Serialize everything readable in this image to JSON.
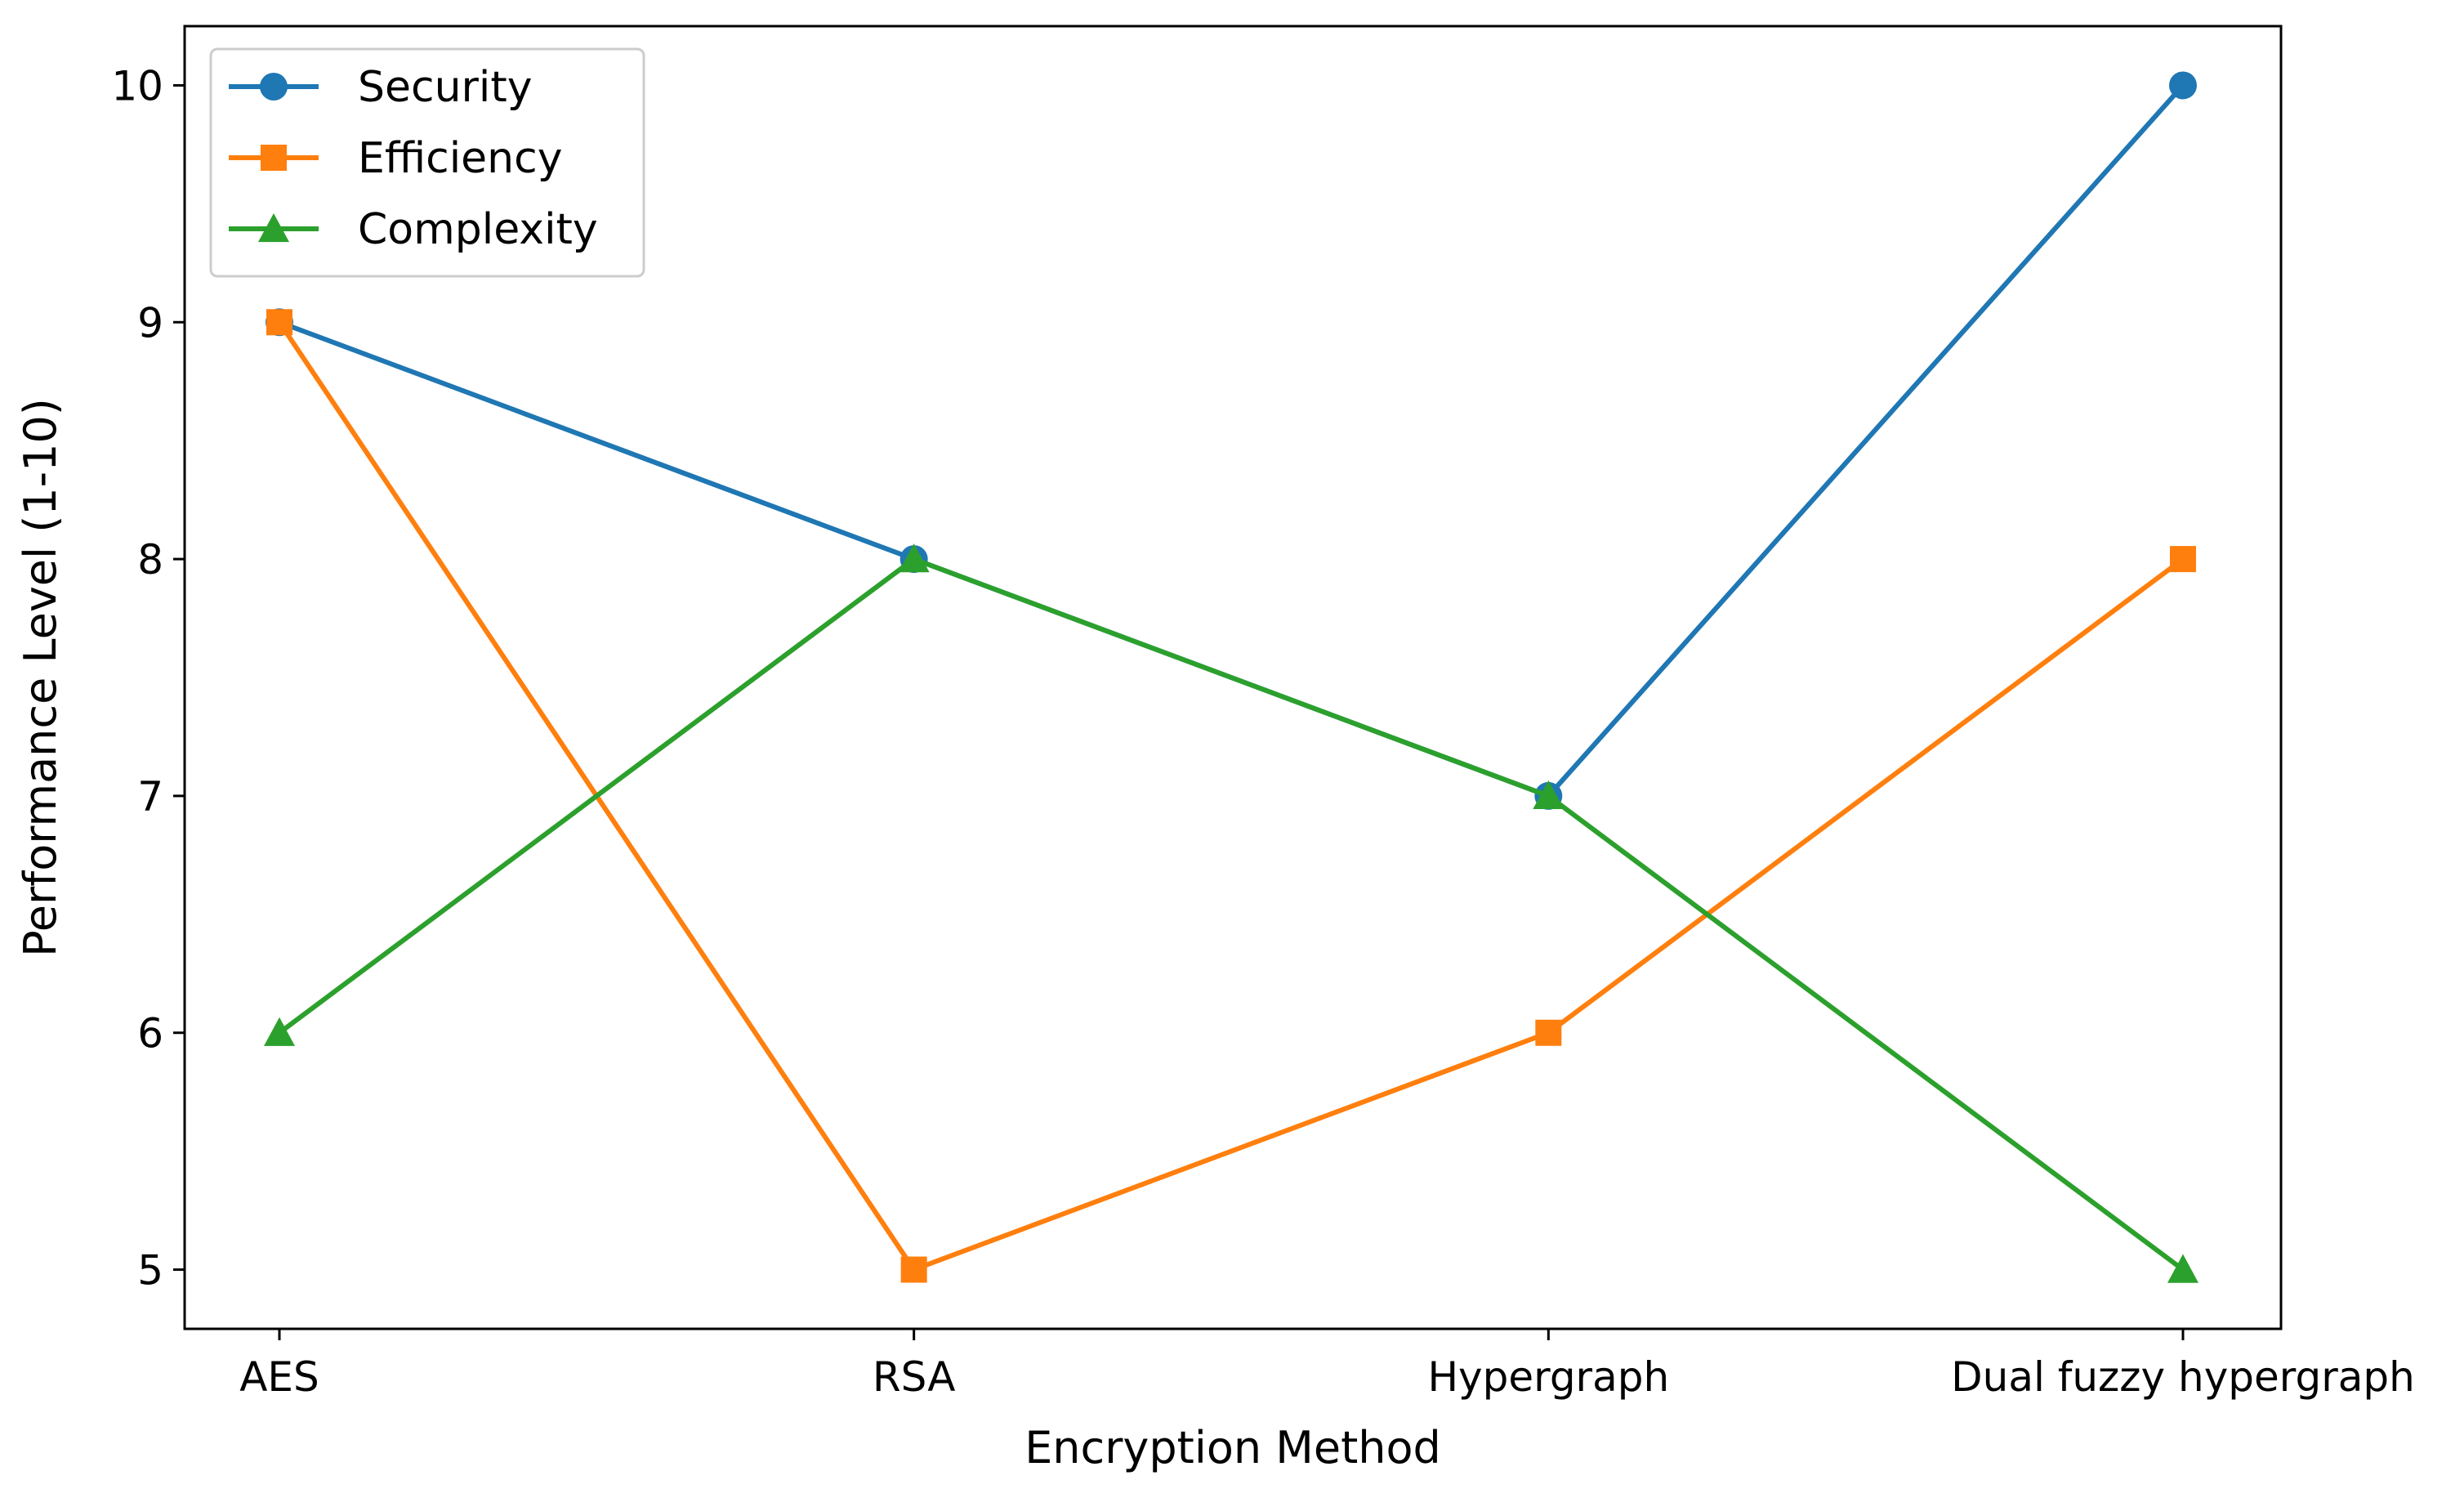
{
  "chart_data": {
    "type": "line",
    "title": "",
    "xlabel": "Encryption Method",
    "ylabel": "Performance Level (1-10)",
    "categories": [
      "AES",
      "RSA",
      "Hypergraph",
      "Dual fuzzy hypergraph"
    ],
    "yticks": [
      "5",
      "6",
      "7",
      "8",
      "9",
      "10"
    ],
    "ylim": [
      4.75,
      10.25
    ],
    "grid": false,
    "legend_position": "upper left",
    "series": [
      {
        "name": "Security",
        "values": [
          9,
          8,
          7,
          10
        ],
        "color": "#1f77b4",
        "marker": "circle"
      },
      {
        "name": "Efficiency",
        "values": [
          9,
          5,
          6,
          8
        ],
        "color": "#ff7f0e",
        "marker": "square"
      },
      {
        "name": "Complexity",
        "values": [
          6,
          8,
          7,
          5
        ],
        "color": "#2ca02c",
        "marker": "triangle"
      }
    ]
  }
}
